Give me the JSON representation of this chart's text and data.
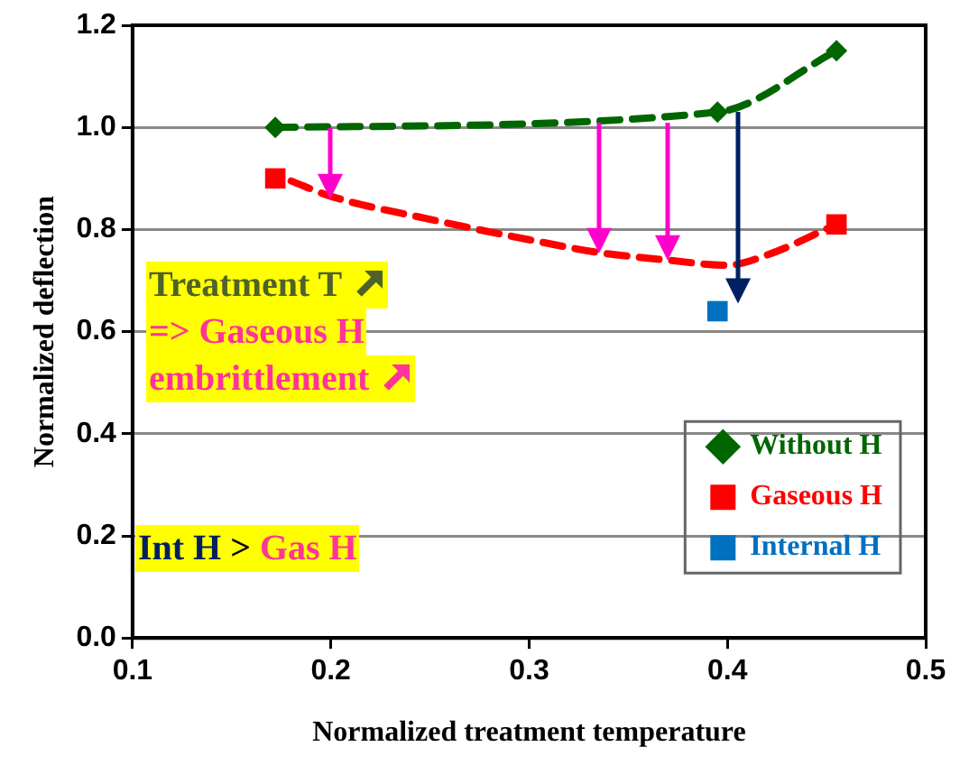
{
  "chart_data": {
    "type": "line",
    "xlabel": "Normalized treatment temperature",
    "ylabel": "Normalized deflection",
    "xlim": [
      0.1,
      0.5
    ],
    "xticks": [
      0.1,
      0.2,
      0.3,
      0.4,
      0.5
    ],
    "ylim": [
      0,
      1.2
    ],
    "yticks": [
      {
        "value": 0,
        "label": "0.0"
      },
      0.2,
      0.4,
      0.6,
      0.8,
      {
        "value": 1,
        "label": "1.0"
      },
      1.2
    ],
    "grid": "y",
    "legend": "bottom right",
    "series": [
      {
        "name": "Without H",
        "type": "line",
        "color": "#006600",
        "marker": "diamond",
        "line_style": "dashed",
        "x": [
          0.172,
          0.395,
          0.455
        ],
        "values": [
          1.0,
          1.03,
          1.15
        ]
      },
      {
        "type": "line",
        "color": "#ff0000",
        "marker": "none",
        "line_style": "dashed",
        "x": [
          0.18,
          0.2,
          0.25,
          0.3,
          0.335,
          0.37,
          0.4,
          0.42,
          0.455
        ],
        "values": [
          0.895,
          0.865,
          0.82,
          0.78,
          0.755,
          0.74,
          0.73,
          0.75,
          0.81
        ]
      },
      {
        "name": "Gaseous H",
        "type": "scatter",
        "color": "#ff0000",
        "marker": "square",
        "x": [
          0.172,
          0.455
        ],
        "values": [
          0.9,
          0.81
        ]
      },
      {
        "name": "Internal H",
        "type": "scatter",
        "color": "#0070c0",
        "marker": "square",
        "x": [
          0.395
        ],
        "values": [
          0.64
        ]
      }
    ],
    "annotations": [
      "Treatment T",
      "=> Gaseous H",
      "embrittlement",
      "Int H",
      ">",
      "Gas H"
    ]
  }
}
